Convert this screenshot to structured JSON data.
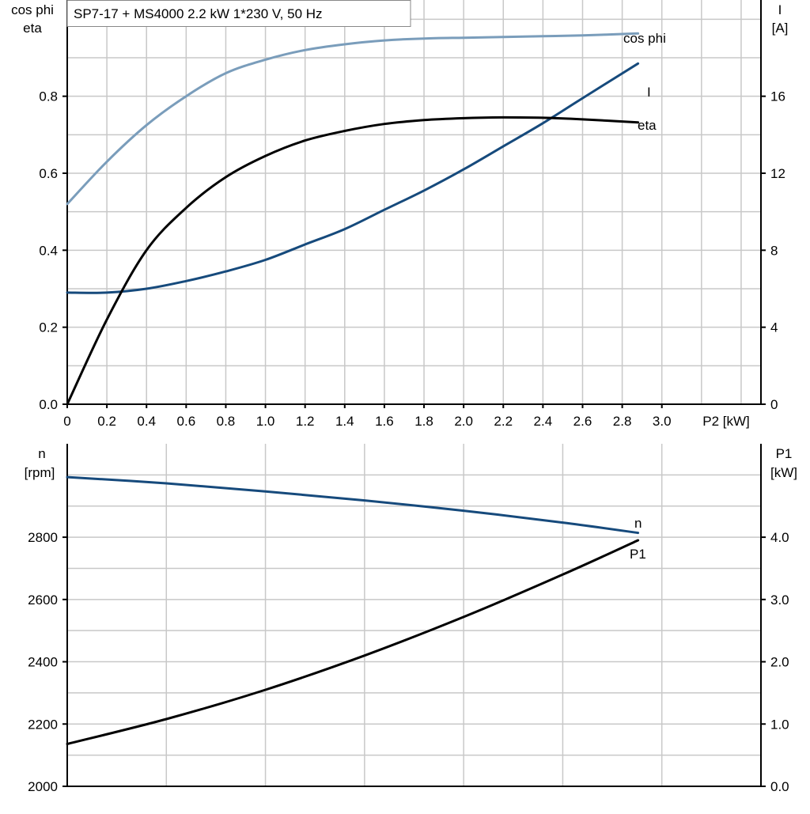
{
  "colors": {
    "cosphi": "#7a9dbb",
    "current": "#164a7c",
    "eta": "#000000",
    "speed": "#164a7c",
    "p1": "#000000",
    "grid": "#c8c8c8",
    "axis": "#000000"
  },
  "chart_data": [
    {
      "type": "line",
      "title": "SP7-17 + MS4000   2.2 kW   1*230 V, 50 Hz",
      "xlabel": "P2 [kW]",
      "xlim": [
        0,
        3.5
      ],
      "x_ticks": [
        "0",
        "0.2",
        "0.4",
        "0.6",
        "0.8",
        "1.0",
        "1.2",
        "1.4",
        "1.6",
        "1.8",
        "2.0",
        "2.2",
        "2.4",
        "2.6",
        "2.8",
        "3.0"
      ],
      "left_axis": {
        "label_line1": "cos phi",
        "label_line2": "eta",
        "ylim": [
          0,
          1.05
        ],
        "ticks": [
          "0.0",
          "0.2",
          "0.4",
          "0.6",
          "0.8"
        ]
      },
      "right_axis": {
        "label_line1": "I",
        "label_line2": "[A]",
        "ylim": [
          0,
          21
        ],
        "ticks": [
          "0",
          "4",
          "8",
          "12",
          "16"
        ]
      },
      "grid": true,
      "series": [
        {
          "name": "cos phi",
          "axis": "left",
          "x": [
            0,
            0.2,
            0.4,
            0.6,
            0.8,
            1.0,
            1.2,
            1.4,
            1.6,
            1.8,
            2.0,
            2.2,
            2.4,
            2.6,
            2.88
          ],
          "values": [
            0.52,
            0.63,
            0.725,
            0.8,
            0.86,
            0.895,
            0.92,
            0.935,
            0.945,
            0.95,
            0.952,
            0.954,
            0.956,
            0.958,
            0.963
          ]
        },
        {
          "name": "I",
          "axis": "right",
          "x": [
            0,
            0.2,
            0.4,
            0.6,
            0.8,
            1.0,
            1.2,
            1.4,
            1.6,
            1.8,
            2.0,
            2.2,
            2.4,
            2.6,
            2.88
          ],
          "values": [
            5.8,
            5.8,
            6.0,
            6.4,
            6.9,
            7.5,
            8.3,
            9.1,
            10.1,
            11.1,
            12.2,
            13.4,
            14.6,
            15.9,
            17.7
          ]
        },
        {
          "name": "eta",
          "axis": "left",
          "x": [
            0,
            0.2,
            0.4,
            0.6,
            0.8,
            1.0,
            1.2,
            1.4,
            1.6,
            1.8,
            2.0,
            2.2,
            2.4,
            2.6,
            2.88
          ],
          "values": [
            0.0,
            0.22,
            0.4,
            0.51,
            0.59,
            0.645,
            0.685,
            0.71,
            0.728,
            0.738,
            0.743,
            0.745,
            0.744,
            0.74,
            0.732
          ]
        }
      ]
    },
    {
      "type": "line",
      "xlim": [
        0,
        3.5
      ],
      "left_axis": {
        "label_line1": "n",
        "label_line2": "[rpm]",
        "ylim": [
          2000,
          3100
        ],
        "ticks": [
          "2000",
          "2200",
          "2400",
          "2600",
          "2800"
        ]
      },
      "right_axis": {
        "label_line1": "P1",
        "label_line2": "[kW]",
        "ylim": [
          0,
          5.5
        ],
        "ticks": [
          "0.0",
          "1.0",
          "2.0",
          "3.0",
          "4.0"
        ]
      },
      "grid": true,
      "series": [
        {
          "name": "n",
          "axis": "left",
          "x": [
            0,
            0.5,
            1.0,
            1.5,
            2.0,
            2.5,
            2.88
          ],
          "values": [
            2993,
            2973,
            2947,
            2918,
            2885,
            2847,
            2814
          ]
        },
        {
          "name": "P1",
          "axis": "right",
          "x": [
            0,
            0.5,
            1.0,
            1.5,
            2.0,
            2.5,
            2.88
          ],
          "values": [
            0.68,
            1.08,
            1.55,
            2.1,
            2.72,
            3.4,
            3.95
          ]
        }
      ]
    }
  ]
}
